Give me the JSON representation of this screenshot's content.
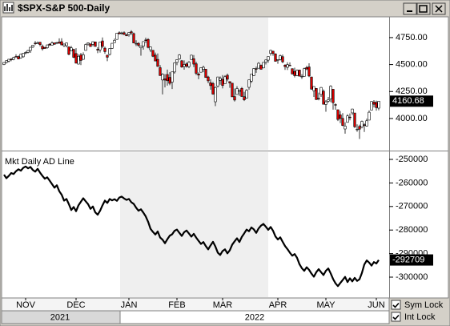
{
  "chart_data": [
    {
      "type": "candlestick",
      "title": "$SPX-S&P 500-Daily",
      "up_color": "#ffffff",
      "down_color": "#d40000",
      "ylim": [
        3710,
        4935
      ],
      "yticks": [
        {
          "value": 4000,
          "label": "4000.00"
        },
        {
          "value": 4250,
          "label": "4250.00"
        },
        {
          "value": 4500,
          "label": "4500.00"
        },
        {
          "value": 4750,
          "label": "4750.00"
        }
      ],
      "values": [
        [
          4500,
          4522,
          4495,
          4519
        ],
        [
          4519,
          4540,
          4510,
          4536
        ],
        [
          4532,
          4551,
          4520,
          4549
        ],
        [
          4550,
          4559,
          4531,
          4544
        ],
        [
          4548,
          4572,
          4540,
          4566
        ],
        [
          4575,
          4595,
          4568,
          4574
        ],
        [
          4574,
          4584,
          4550,
          4551
        ],
        [
          4562,
          4598,
          4555,
          4596
        ],
        [
          4572,
          4608,
          4565,
          4605
        ],
        [
          4610,
          4621,
          4595,
          4613
        ],
        [
          4613,
          4635,
          4604,
          4630
        ],
        [
          4630,
          4663,
          4608,
          4660
        ],
        [
          4662,
          4683,
          4654,
          4680
        ],
        [
          4699,
          4718,
          4681,
          4697
        ],
        [
          4701,
          4714,
          4694,
          4701
        ],
        [
          4707,
          4708,
          4670,
          4685
        ],
        [
          4670,
          4685,
          4630,
          4646
        ],
        [
          4659,
          4663,
          4646,
          4649
        ],
        [
          4655,
          4685,
          4647,
          4682
        ],
        [
          4689,
          4697,
          4672,
          4682
        ],
        [
          4679,
          4714,
          4678,
          4700
        ],
        [
          4701,
          4701,
          4684,
          4688
        ],
        [
          4700,
          4708,
          4689,
          4704
        ],
        [
          4708,
          4743,
          4696,
          4697
        ],
        [
          4712,
          4744,
          4680,
          4682
        ],
        [
          4675,
          4694,
          4662,
          4690
        ],
        [
          4675,
          4702,
          4659,
          4701
        ],
        [
          4664,
          4664,
          4586,
          4595
        ],
        [
          4628,
          4672,
          4625,
          4655
        ],
        [
          4640,
          4646,
          4560,
          4567
        ],
        [
          4602,
          4652,
          4510,
          4513
        ],
        [
          4504,
          4595,
          4504,
          4577
        ],
        [
          4589,
          4608,
          4495,
          4538
        ],
        [
          4548,
          4613,
          4547,
          4591
        ],
        [
          4631,
          4694,
          4631,
          4686
        ],
        [
          4690,
          4705,
          4675,
          4701
        ],
        [
          4691,
          4695,
          4666,
          4667
        ],
        [
          4687,
          4713,
          4670,
          4712
        ],
        [
          4710,
          4710,
          4666,
          4668
        ],
        [
          4642,
          4660,
          4606,
          4634
        ],
        [
          4636,
          4712,
          4611,
          4709
        ],
        [
          4719,
          4751,
          4651,
          4668
        ],
        [
          4652,
          4666,
          4600,
          4620
        ],
        [
          4587,
          4588,
          4531,
          4568
        ],
        [
          4594,
          4651,
          4584,
          4649
        ],
        [
          4650,
          4698,
          4645,
          4697
        ],
        [
          4703,
          4740,
          4703,
          4725
        ],
        [
          4733,
          4791,
          4733,
          4791
        ],
        [
          4795,
          4808,
          4780,
          4786
        ],
        [
          4788,
          4804,
          4778,
          4793
        ],
        [
          4795,
          4808,
          4775,
          4778
        ],
        [
          4775,
          4786,
          4765,
          4766
        ],
        [
          4778,
          4797,
          4759,
          4797
        ],
        [
          4804,
          4818,
          4775,
          4794
        ],
        [
          4787,
          4797,
          4699,
          4700
        ],
        [
          4693,
          4725,
          4671,
          4696
        ],
        [
          4697,
          4707,
          4663,
          4677
        ],
        [
          4655,
          4673,
          4582,
          4670
        ],
        [
          4670,
          4714,
          4638,
          4713
        ],
        [
          4728,
          4749,
          4700,
          4726
        ],
        [
          4733,
          4744,
          4650,
          4659
        ],
        [
          4637,
          4665,
          4615,
          4663
        ],
        [
          4632,
          4632,
          4569,
          4577
        ],
        [
          4588,
          4611,
          4531,
          4533
        ],
        [
          4548,
          4603,
          4478,
          4483
        ],
        [
          4471,
          4495,
          4396,
          4398
        ],
        [
          4357,
          4418,
          4223,
          4410
        ],
        [
          4367,
          4412,
          4288,
          4356
        ],
        [
          4408,
          4453,
          4305,
          4350
        ],
        [
          4381,
          4429,
          4309,
          4326
        ],
        [
          4337,
          4433,
          4273,
          4432
        ],
        [
          4431,
          4517,
          4415,
          4516
        ],
        [
          4520,
          4548,
          4494,
          4546
        ],
        [
          4552,
          4595,
          4545,
          4589
        ],
        [
          4535,
          4542,
          4470,
          4477
        ],
        [
          4482,
          4539,
          4452,
          4501
        ],
        [
          4506,
          4521,
          4471,
          4484
        ],
        [
          4481,
          4531,
          4466,
          4522
        ],
        [
          4547,
          4591,
          4547,
          4587
        ],
        [
          4554,
          4588,
          4477,
          4504
        ],
        [
          4507,
          4527,
          4402,
          4419
        ],
        [
          4413,
          4427,
          4364,
          4402
        ],
        [
          4429,
          4473,
          4429,
          4472
        ],
        [
          4455,
          4490,
          4429,
          4475
        ],
        [
          4457,
          4460,
          4378,
          4380
        ],
        [
          4385,
          4396,
          4327,
          4349
        ],
        [
          4332,
          4363,
          4267,
          4305
        ],
        [
          4324,
          4340,
          4221,
          4226
        ],
        [
          4155,
          4295,
          4115,
          4288
        ],
        [
          4299,
          4385,
          4287,
          4385
        ],
        [
          4354,
          4389,
          4313,
          4374
        ],
        [
          4363,
          4402,
          4279,
          4306
        ],
        [
          4322,
          4401,
          4322,
          4387
        ],
        [
          4401,
          4416,
          4345,
          4364
        ],
        [
          4342,
          4342,
          4284,
          4329
        ],
        [
          4327,
          4328,
          4199,
          4201
        ],
        [
          4203,
          4277,
          4157,
          4171
        ],
        [
          4223,
          4299,
          4223,
          4278
        ],
        [
          4252,
          4268,
          4209,
          4260
        ],
        [
          4279,
          4292,
          4202,
          4204
        ],
        [
          4202,
          4247,
          4162,
          4173
        ],
        [
          4189,
          4271,
          4187,
          4262
        ],
        [
          4289,
          4358,
          4267,
          4358
        ],
        [
          4346,
          4412,
          4329,
          4412
        ],
        [
          4398,
          4465,
          4393,
          4463
        ],
        [
          4462,
          4481,
          4424,
          4461
        ],
        [
          4466,
          4522,
          4466,
          4512
        ],
        [
          4493,
          4501,
          4455,
          4456
        ],
        [
          4469,
          4520,
          4465,
          4520
        ],
        [
          4522,
          4546,
          4501,
          4543
        ],
        [
          4541,
          4575,
          4517,
          4575
        ],
        [
          4603,
          4637,
          4582,
          4632
        ],
        [
          4624,
          4627,
          4581,
          4602
        ],
        [
          4599,
          4604,
          4530,
          4530
        ],
        [
          4540,
          4547,
          4507,
          4546
        ],
        [
          4547,
          4593,
          4538,
          4583
        ],
        [
          4573,
          4593,
          4514,
          4525
        ],
        [
          4495,
          4503,
          4451,
          4481
        ],
        [
          4474,
          4521,
          4450,
          4500
        ],
        [
          4494,
          4520,
          4486,
          4488
        ],
        [
          4462,
          4464,
          4408,
          4413
        ],
        [
          4437,
          4471,
          4381,
          4397
        ],
        [
          4398,
          4453,
          4392,
          4447
        ],
        [
          4449,
          4452,
          4392,
          4392
        ],
        [
          4385,
          4411,
          4367,
          4391
        ],
        [
          4390,
          4471,
          4390,
          4463
        ],
        [
          4472,
          4489,
          4448,
          4459
        ],
        [
          4478,
          4512,
          4384,
          4394
        ],
        [
          4385,
          4386,
          4268,
          4272
        ],
        [
          4256,
          4299,
          4200,
          4296
        ],
        [
          4279,
          4279,
          4175,
          4175
        ],
        [
          4187,
          4240,
          4168,
          4184
        ],
        [
          4223,
          4291,
          4200,
          4288
        ],
        [
          4253,
          4270,
          4132,
          4132
        ],
        [
          4130,
          4170,
          4063,
          4155
        ],
        [
          4160,
          4200,
          4147,
          4175
        ],
        [
          4181,
          4308,
          4152,
          4300
        ],
        [
          4271,
          4271,
          4082,
          4147
        ],
        [
          4129,
          4140,
          4081,
          4123
        ],
        [
          4081,
          4082,
          3976,
          3991
        ],
        [
          4034,
          4069,
          3957,
          4001
        ],
        [
          4001,
          4050,
          3929,
          3935
        ],
        [
          3903,
          3965,
          3859,
          3930
        ],
        [
          3964,
          4039,
          3964,
          4024
        ],
        [
          4013,
          4047,
          3983,
          4008
        ],
        [
          4052,
          4090,
          4033,
          4088
        ],
        [
          4051,
          4051,
          3912,
          3923
        ],
        [
          3900,
          3946,
          3877,
          3901
        ],
        [
          3927,
          3943,
          3810,
          3901
        ],
        [
          3920,
          3981,
          3909,
          3974
        ],
        [
          3942,
          3955,
          3875,
          3941
        ],
        [
          3930,
          3999,
          3925,
          3979
        ],
        [
          3985,
          4075,
          3985,
          4058
        ],
        [
          4078,
          4158,
          4078,
          4158
        ],
        [
          4152,
          4170,
          4103,
          4132
        ],
        [
          4149,
          4166,
          4073,
          4101
        ],
        [
          4096,
          4162,
          4076,
          4160.68
        ]
      ]
    },
    {
      "type": "line",
      "title": "Mkt Daily AD Line",
      "color": "#000000",
      "ylim": [
        -308500,
        -246940
      ],
      "yticks": [
        -250000,
        -260000,
        -270000,
        -280000,
        -290000,
        -300000
      ],
      "xticks": [
        {
          "value": 9,
          "label": "NOV"
        },
        {
          "value": 30,
          "label": "DEC"
        },
        {
          "value": 52,
          "label": "JAN"
        },
        {
          "value": 72,
          "label": "FEB"
        },
        {
          "value": 91,
          "label": "MAR"
        },
        {
          "value": 114,
          "label": "APR"
        },
        {
          "value": 134,
          "label": "MAY"
        },
        {
          "value": 155,
          "label": "JUN"
        }
      ],
      "year_labels": [
        "2021",
        "2022"
      ],
      "values": [
        -256500,
        -258000,
        -257000,
        -255800,
        -256200,
        -255000,
        -254200,
        -254800,
        -253600,
        -253000,
        -253800,
        -253200,
        -254500,
        -255200,
        -254000,
        -255600,
        -257000,
        -258200,
        -257600,
        -259000,
        -260500,
        -262000,
        -261000,
        -263500,
        -265000,
        -267500,
        -266800,
        -269000,
        -271500,
        -270200,
        -272000,
        -269500,
        -268000,
        -266500,
        -267800,
        -269000,
        -271000,
        -270000,
        -272500,
        -273500,
        -271800,
        -269500,
        -267500,
        -268500,
        -266800,
        -267400,
        -266900,
        -267600,
        -266200,
        -265800,
        -266600,
        -267200,
        -266800,
        -268200,
        -268900,
        -270500,
        -271800,
        -271200,
        -272600,
        -274200,
        -276500,
        -279500,
        -280800,
        -281900,
        -280600,
        -283200,
        -284100,
        -285600,
        -283900,
        -282400,
        -281800,
        -280300,
        -279800,
        -281200,
        -282500,
        -280900,
        -280200,
        -281500,
        -282800,
        -281600,
        -283200,
        -284600,
        -285900,
        -285100,
        -286800,
        -288200,
        -286500,
        -285000,
        -287000,
        -289600,
        -290600,
        -288900,
        -288200,
        -289900,
        -288600,
        -286200,
        -284800,
        -283500,
        -285100,
        -282900,
        -281400,
        -279800,
        -280500,
        -278900,
        -279700,
        -281200,
        -279300,
        -278100,
        -277400,
        -278600,
        -279900,
        -278700,
        -280300,
        -282700,
        -284000,
        -283100,
        -285000,
        -286800,
        -288100,
        -289600,
        -290900,
        -290200,
        -291800,
        -294500,
        -296200,
        -297300,
        -295800,
        -296900,
        -298500,
        -299800,
        -297900,
        -296600,
        -297900,
        -299100,
        -297300,
        -296300,
        -298400,
        -300800,
        -302600,
        -303800,
        -302500,
        -301200,
        -299900,
        -302100,
        -300500,
        -301800,
        -300300,
        -301600,
        -300900,
        -298200,
        -294600,
        -292900,
        -293800,
        -295100,
        -293600,
        -294200,
        -292709
      ]
    }
  ],
  "controls": [
    "Sym Lock",
    "Int Lock"
  ]
}
